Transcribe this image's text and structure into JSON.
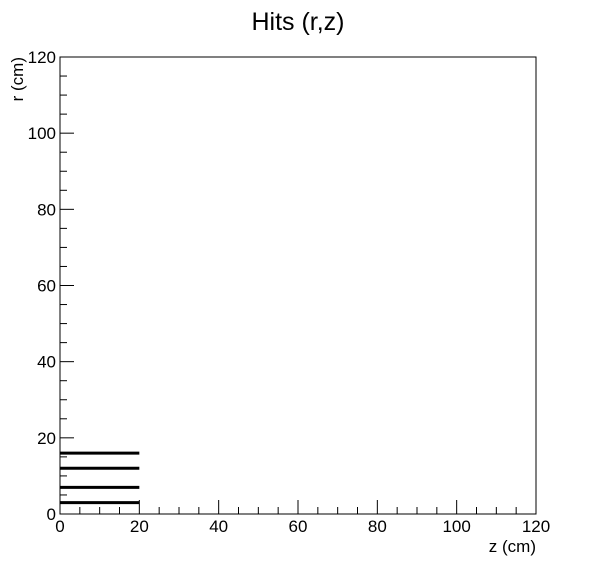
{
  "chart_data": {
    "type": "line",
    "title": "Hits (r,z)",
    "xlabel": "z (cm)",
    "ylabel": "r (cm)",
    "xlim": [
      0,
      120
    ],
    "ylim": [
      0,
      120
    ],
    "x_ticks": [
      "0",
      "20",
      "40",
      "60",
      "80",
      "100",
      "120"
    ],
    "y_ticks": [
      "0",
      "20",
      "40",
      "60",
      "80",
      "100",
      "120"
    ],
    "grid": false,
    "legend": "none",
    "line_color": "#000000",
    "series": [
      {
        "x": [
          0,
          20
        ],
        "y": [
          3,
          3
        ]
      },
      {
        "x": [
          0,
          20
        ],
        "y": [
          7,
          7
        ]
      },
      {
        "x": [
          0,
          20
        ],
        "y": [
          12,
          12
        ]
      },
      {
        "x": [
          0,
          20
        ],
        "y": [
          16,
          16
        ]
      }
    ]
  }
}
